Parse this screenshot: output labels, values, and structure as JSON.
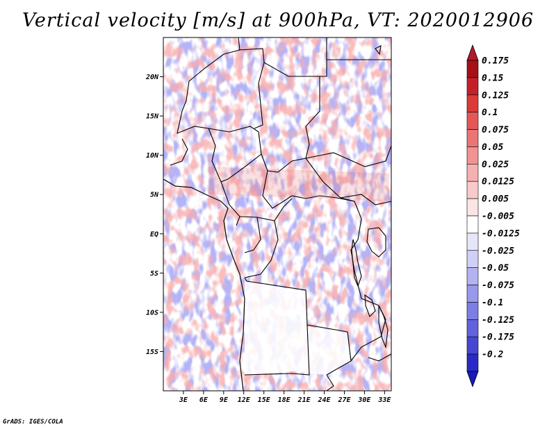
{
  "title": "Vertical velocity [m/s] at 900hPa, VT: 2020012906",
  "credit": "GrADS: IGES/COLA",
  "map": {
    "lon_range": [
      0,
      34
    ],
    "lat_range": [
      -20,
      25
    ],
    "lat_ticks": [
      {
        "value": 20,
        "label": "20N"
      },
      {
        "value": 15,
        "label": "15N"
      },
      {
        "value": 10,
        "label": "10N"
      },
      {
        "value": 5,
        "label": "5N"
      },
      {
        "value": 0,
        "label": "EQ"
      },
      {
        "value": -5,
        "label": "5S"
      },
      {
        "value": -10,
        "label": "10S"
      },
      {
        "value": -15,
        "label": "15S"
      }
    ],
    "lon_ticks": [
      {
        "value": 3,
        "label": "3E"
      },
      {
        "value": 6,
        "label": "6E"
      },
      {
        "value": 9,
        "label": "9E"
      },
      {
        "value": 12,
        "label": "12E"
      },
      {
        "value": 15,
        "label": "15E"
      },
      {
        "value": 18,
        "label": "18E"
      },
      {
        "value": 21,
        "label": "21E"
      },
      {
        "value": 24,
        "label": "24E"
      },
      {
        "value": 27,
        "label": "27E"
      },
      {
        "value": 30,
        "label": "30E"
      },
      {
        "value": 33,
        "label": "33E"
      }
    ]
  },
  "colorbar": {
    "levels": [
      {
        "label": "0.175",
        "color": "#a50f15"
      },
      {
        "label": "0.15",
        "color": "#c4202a"
      },
      {
        "label": "0.125",
        "color": "#dc3a3a"
      },
      {
        "label": "0.1",
        "color": "#e55757"
      },
      {
        "label": "0.075",
        "color": "#ec7474"
      },
      {
        "label": "0.05",
        "color": "#f29292"
      },
      {
        "label": "0.025",
        "color": "#f6b0b0"
      },
      {
        "label": "0.0125",
        "color": "#f9caca"
      },
      {
        "label": "0.005",
        "color": "#fce4e4"
      },
      {
        "label": "-0.005",
        "color": "#ffffff"
      },
      {
        "label": "-0.0125",
        "color": "#e6e6fb"
      },
      {
        "label": "-0.025",
        "color": "#cfcff7"
      },
      {
        "label": "-0.05",
        "color": "#b3b3f2"
      },
      {
        "label": "-0.075",
        "color": "#9898ec"
      },
      {
        "label": "-0.1",
        "color": "#7d7de6"
      },
      {
        "label": "-0.125",
        "color": "#6262de"
      },
      {
        "label": "-0.175",
        "color": "#4646d4"
      },
      {
        "label": "-0.2",
        "color": "#2a2ac8"
      }
    ],
    "top_color": "#b2182b",
    "bottom_color": "#1a1ab8"
  }
}
